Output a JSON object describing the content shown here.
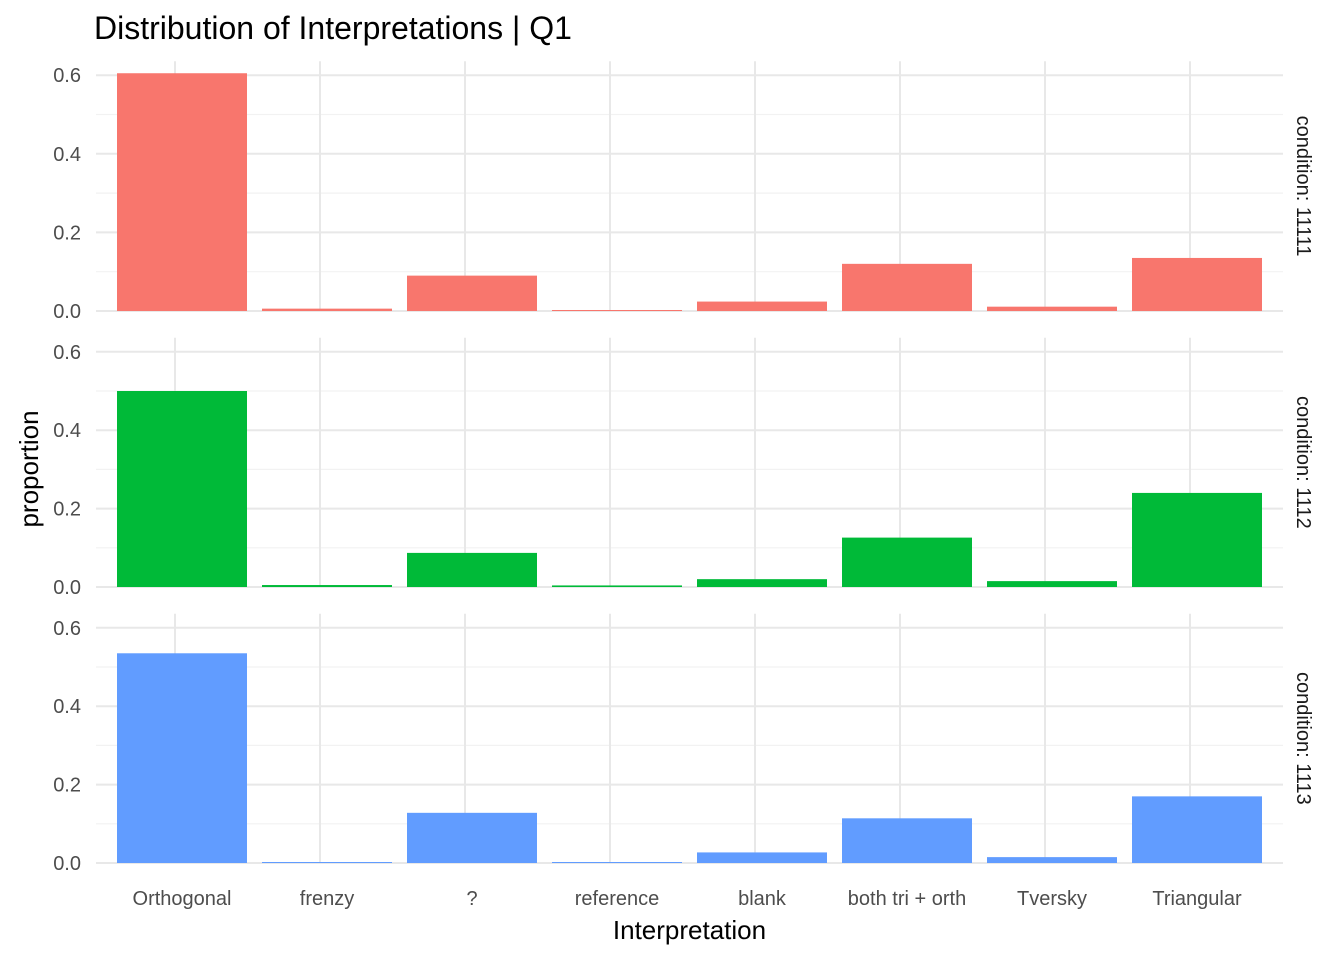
{
  "chart_data": {
    "type": "bar",
    "title": "Distribution of Interpretations | Q1",
    "xlabel": "Interpretation",
    "ylabel": "proportion",
    "categories": [
      "Orthogonal",
      "frenzy",
      "?",
      "reference",
      "blank",
      "both tri + orth",
      "Tversky",
      "Triangular"
    ],
    "ylim": [
      0,
      0.6
    ],
    "yticks": [
      "0.0",
      "0.2",
      "0.4",
      "0.6"
    ],
    "grid": true,
    "legend": "none",
    "facets": [
      {
        "label": "condition: 11111",
        "color": "#F8766D",
        "values": [
          0.605,
          0.006,
          0.09,
          0.002,
          0.024,
          0.12,
          0.011,
          0.135
        ]
      },
      {
        "label": "condition: 1112",
        "color": "#00BA38",
        "values": [
          0.5,
          0.005,
          0.087,
          0.004,
          0.02,
          0.126,
          0.015,
          0.24
        ]
      },
      {
        "label": "condition: 1113",
        "color": "#619CFF",
        "values": [
          0.535,
          0.002,
          0.128,
          0.001,
          0.027,
          0.114,
          0.015,
          0.17
        ]
      }
    ]
  }
}
